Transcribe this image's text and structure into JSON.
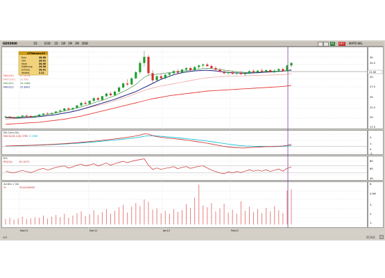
{
  "toolbar": {
    "symbol": "GDX0000",
    "period": "1D",
    "tabs": [
      "EOD",
      "1D"
    ],
    "mode_a": "1W",
    "mode_b": "1M",
    "mode_c": "3M",
    "mode_d": "DDB",
    "right_labels": [
      "AC",
      "DET",
      "MATR 80L"
    ]
  },
  "tooltip": {
    "date": "27February13",
    "rows": [
      {
        "label": "Kurs",
        "value": "28.88"
      },
      {
        "label": "Tief",
        "value": "26.41"
      },
      {
        "label": "Hoch",
        "value": "30.00"
      },
      {
        "label": "Eröffnung",
        "value": "26.36"
      },
      {
        "label": "Schluss",
        "value": "28.41"
      },
      {
        "label": "Veränd.",
        "value": "2.21"
      }
    ],
    "colors": {
      "bg": "#f2d27a",
      "border": "#b08a2a",
      "header": "#cc9a1a"
    }
  },
  "price_legend": [
    {
      "label": "MAV(10)",
      "value": "27.5714",
      "color": "#e53935"
    },
    {
      "label": "MAV(100)",
      "value": "25.692",
      "color": "#e57373"
    },
    {
      "label": "MAV(50)",
      "value": "26.4488",
      "color": "#2e7d32"
    },
    {
      "label": "MAV(22)",
      "value": "25.8491",
      "color": "#1a237e"
    }
  ],
  "price_axis": [
    "30.",
    "25.5",
    "21.00",
    "20.",
    "27.5",
    "25.",
    "22.5",
    "20.",
    "17.5"
  ],
  "price_last": "21.00",
  "macd_legend": [
    {
      "label": "MA-Conv.Div.",
      "value": "",
      "color": "#333333"
    },
    {
      "label": "MACD(26,12)",
      "value": "0.3765",
      "color": "#c62828"
    },
    {
      "label": "",
      "value": "0.2588",
      "color": "#00bcd4"
    }
  ],
  "macd_axis": [
    "2.",
    "1.",
    "0.",
    "-1."
  ],
  "rsi_legend": [
    {
      "label": "RSI",
      "value": "",
      "color": "#333333"
    },
    {
      "label": "RSI(14)",
      "value": "61.0272",
      "color": "#c62828"
    }
  ],
  "rsi_axis": [
    "80.",
    "60.",
    "40."
  ],
  "vol_legend": [
    {
      "label": "Ad.Dec c Vol",
      "value": "",
      "color": "#333333"
    },
    {
      "label": "TL",
      "value": "3244198950",
      "color": "#c62828"
    }
  ],
  "vol_axis": [
    "6.",
    "4.9M",
    "3.",
    "2.",
    "1."
  ],
  "x_axis": [
    "Nov11",
    "Dec11",
    "Jan12",
    "Feb12"
  ],
  "status": {
    "left": "col",
    "right": "SCALE"
  },
  "chart_data": [
    {
      "type": "candlestick",
      "title": "",
      "ylim": [
        16.5,
        32
      ],
      "candles": [
        [
          18.6,
          18.9,
          18.4,
          18.7
        ],
        [
          18.7,
          18.8,
          18.3,
          18.5
        ],
        [
          18.5,
          18.7,
          18.2,
          18.4
        ],
        [
          18.4,
          18.8,
          18.3,
          18.7
        ],
        [
          18.7,
          19.0,
          18.5,
          18.9
        ],
        [
          18.9,
          19.1,
          18.6,
          18.8
        ],
        [
          18.8,
          19.0,
          18.5,
          18.6
        ],
        [
          18.6,
          18.9,
          18.4,
          18.8
        ],
        [
          18.8,
          19.2,
          18.7,
          19.1
        ],
        [
          19.1,
          19.4,
          18.9,
          19.3
        ],
        [
          19.3,
          19.6,
          19.1,
          19.2
        ],
        [
          19.2,
          19.5,
          19.0,
          19.4
        ],
        [
          19.4,
          19.8,
          19.3,
          19.7
        ],
        [
          19.7,
          20.1,
          19.5,
          19.9
        ],
        [
          19.9,
          20.4,
          19.7,
          20.3
        ],
        [
          20.3,
          20.6,
          19.9,
          20.1
        ],
        [
          20.1,
          20.5,
          19.8,
          20.4
        ],
        [
          20.4,
          21.0,
          20.3,
          20.9
        ],
        [
          20.9,
          21.6,
          20.7,
          21.4
        ],
        [
          21.4,
          21.8,
          21.0,
          21.2
        ],
        [
          21.2,
          21.9,
          21.0,
          21.8
        ],
        [
          21.8,
          22.5,
          21.5,
          22.3
        ],
        [
          22.3,
          22.6,
          21.8,
          22.0
        ],
        [
          22.0,
          22.8,
          21.9,
          22.7
        ],
        [
          22.7,
          23.4,
          22.5,
          23.2
        ],
        [
          23.2,
          23.6,
          22.7,
          22.9
        ],
        [
          22.9,
          23.8,
          22.8,
          23.6
        ],
        [
          23.6,
          24.6,
          23.4,
          24.4
        ],
        [
          24.4,
          25.4,
          24.2,
          25.2
        ],
        [
          25.2,
          26.0,
          24.7,
          25.0
        ],
        [
          25.0,
          26.4,
          24.9,
          26.2
        ],
        [
          26.2,
          27.6,
          26.0,
          27.4
        ],
        [
          27.4,
          29.6,
          27.0,
          29.2
        ],
        [
          29.2,
          31.6,
          28.5,
          30.4
        ],
        [
          30.4,
          30.8,
          26.8,
          27.2
        ],
        [
          27.2,
          27.8,
          25.3,
          25.8
        ],
        [
          25.8,
          26.8,
          25.6,
          26.6
        ],
        [
          26.6,
          27.2,
          26.0,
          26.2
        ],
        [
          26.2,
          27.0,
          26.0,
          26.9
        ],
        [
          26.9,
          27.4,
          26.4,
          27.2
        ],
        [
          27.2,
          27.8,
          26.9,
          27.6
        ],
        [
          27.6,
          28.0,
          27.1,
          27.3
        ],
        [
          27.3,
          28.1,
          27.2,
          27.9
        ],
        [
          27.9,
          28.4,
          27.5,
          28.2
        ],
        [
          28.2,
          28.5,
          27.6,
          27.8
        ],
        [
          27.8,
          28.6,
          27.6,
          28.4
        ],
        [
          28.4,
          28.9,
          28.0,
          28.7
        ],
        [
          28.7,
          29.1,
          28.3,
          28.9
        ],
        [
          28.9,
          29.2,
          28.4,
          28.6
        ],
        [
          28.6,
          28.9,
          28.0,
          28.2
        ],
        [
          28.2,
          28.6,
          27.7,
          27.9
        ],
        [
          27.9,
          28.2,
          27.3,
          27.5
        ],
        [
          27.5,
          27.9,
          27.0,
          27.2
        ],
        [
          27.2,
          27.6,
          26.8,
          27.4
        ],
        [
          27.4,
          27.7,
          26.9,
          27.1
        ],
        [
          27.1,
          27.5,
          26.8,
          27.3
        ],
        [
          27.3,
          27.6,
          26.9,
          27.0
        ],
        [
          27.0,
          27.4,
          26.7,
          27.2
        ],
        [
          27.2,
          27.8,
          27.0,
          27.6
        ],
        [
          27.6,
          28.0,
          27.2,
          27.4
        ],
        [
          27.4,
          27.8,
          27.1,
          27.7
        ],
        [
          27.7,
          28.1,
          27.3,
          27.5
        ],
        [
          27.5,
          27.9,
          27.2,
          27.8
        ],
        [
          27.8,
          28.0,
          27.3,
          27.4
        ],
        [
          27.4,
          27.9,
          27.2,
          27.7
        ],
        [
          27.7,
          28.2,
          27.5,
          28.0
        ],
        [
          28.0,
          28.3,
          27.5,
          27.6
        ],
        [
          27.6,
          28.9,
          27.5,
          28.7
        ],
        [
          28.7,
          29.4,
          28.3,
          29.2
        ]
      ],
      "ma_red": [
        17.2,
        17.25,
        17.3,
        17.35,
        17.4,
        17.45,
        17.5,
        17.55,
        17.6,
        17.7,
        17.8,
        17.9,
        18.0,
        18.1,
        18.2,
        18.35,
        18.5,
        18.65,
        18.8,
        19.0,
        19.2,
        19.4,
        19.6,
        19.8,
        20.0,
        20.2,
        20.4,
        20.6,
        20.8,
        21.0,
        21.2,
        21.4,
        21.6,
        21.8,
        22.0,
        22.2,
        22.35,
        22.5,
        22.65,
        22.8,
        22.9,
        23.0,
        23.1,
        23.2,
        23.3,
        23.4,
        23.5,
        23.6,
        23.7,
        23.75,
        23.8,
        23.85,
        23.9,
        23.95,
        24.0,
        24.05,
        24.1,
        24.15,
        24.2,
        24.25,
        24.3,
        24.35,
        24.4,
        24.45,
        24.5,
        24.55,
        24.6,
        24.7,
        24.8
      ],
      "ma_pink": [
        18.2,
        18.25,
        18.3,
        18.35,
        18.4,
        18.45,
        18.5,
        18.6,
        18.7,
        18.8,
        18.9,
        19.0,
        19.1,
        19.25,
        19.4,
        19.55,
        19.7,
        19.9,
        20.1,
        20.3,
        20.5,
        20.7,
        20.9,
        21.1,
        21.3,
        21.55,
        21.8,
        22.05,
        22.3,
        22.6,
        22.9,
        23.2,
        23.5,
        23.8,
        24.1,
        24.3,
        24.5,
        24.7,
        24.85,
        25.0,
        25.15,
        25.3,
        25.45,
        25.6,
        25.75,
        25.9,
        26.05,
        26.2,
        26.3,
        26.4,
        26.45,
        26.5,
        26.55,
        26.6,
        26.6,
        26.65,
        26.65,
        26.7,
        26.7,
        26.75,
        26.75,
        26.8,
        26.8,
        26.85,
        26.85,
        26.9,
        26.9,
        27.0,
        27.1
      ],
      "ma_navy": [
        18.5,
        18.5,
        18.45,
        18.45,
        18.5,
        18.55,
        18.6,
        18.65,
        18.7,
        18.8,
        18.9,
        19.0,
        19.1,
        19.25,
        19.4,
        19.55,
        19.7,
        19.9,
        20.1,
        20.35,
        20.6,
        20.85,
        21.1,
        21.35,
        21.6,
        21.85,
        22.1,
        22.4,
        22.7,
        23.0,
        23.3,
        23.6,
        24.0,
        24.4,
        24.8,
        25.2,
        25.6,
        26.0,
        26.3,
        26.6,
        26.9,
        27.1,
        27.3,
        27.45,
        27.55,
        27.65,
        27.7,
        27.75,
        27.75,
        27.7,
        27.65,
        27.55,
        27.45,
        27.35,
        27.3,
        27.25,
        27.2,
        27.2,
        27.2,
        27.25,
        27.3,
        27.35,
        27.4,
        27.45,
        27.5,
        27.55,
        27.6,
        27.7,
        27.8
      ],
      "ma_green": [
        18.6,
        18.6,
        18.55,
        18.6,
        18.7,
        18.75,
        18.75,
        18.8,
        18.9,
        19.0,
        19.15,
        19.3,
        19.45,
        19.6,
        19.8,
        20.0,
        20.2,
        20.4,
        20.6,
        20.85,
        21.1,
        21.4,
        21.65,
        21.9,
        22.2,
        22.5,
        22.8,
        23.2,
        23.6,
        24.0,
        24.5,
        25.0,
        25.7,
        26.4,
        26.8,
        26.9,
        27.0,
        27.1,
        27.2,
        27.3,
        27.4,
        27.5,
        27.6,
        27.7,
        27.8,
        27.9,
        28.0,
        28.1,
        28.15,
        28.1,
        28.0,
        27.9,
        27.8,
        27.7,
        27.6,
        27.5,
        27.4,
        27.35,
        27.35,
        27.4,
        27.45,
        27.5,
        27.55,
        27.55,
        27.55,
        27.6,
        27.6,
        27.7,
        27.9
      ]
    },
    {
      "type": "line",
      "title": "MA-Conv.Div.",
      "ylim": [
        -1.3,
        2.4
      ],
      "series": [
        {
          "name": "MACD(26,12)",
          "values": [
            0.05,
            0.06,
            0.08,
            0.1,
            0.12,
            0.14,
            0.16,
            0.18,
            0.21,
            0.24,
            0.27,
            0.3,
            0.34,
            0.38,
            0.42,
            0.47,
            0.52,
            0.57,
            0.63,
            0.69,
            0.75,
            0.82,
            0.88,
            0.95,
            1.02,
            1.1,
            1.18,
            1.26,
            1.35,
            1.45,
            1.55,
            1.66,
            1.8,
            2.0,
            1.95,
            1.7,
            1.55,
            1.45,
            1.35,
            1.28,
            1.22,
            1.15,
            1.08,
            1.0,
            0.9,
            0.8,
            0.7,
            0.6,
            0.48,
            0.36,
            0.22,
            0.1,
            -0.02,
            -0.12,
            -0.2,
            -0.25,
            -0.28,
            -0.27,
            -0.22,
            -0.18,
            -0.14,
            -0.1,
            -0.07,
            -0.05,
            -0.03,
            0.0,
            0.05,
            0.15,
            0.3
          ]
        },
        {
          "name": "",
          "values": [
            0.04,
            0.05,
            0.06,
            0.07,
            0.09,
            0.11,
            0.13,
            0.15,
            0.17,
            0.2,
            0.23,
            0.26,
            0.29,
            0.32,
            0.36,
            0.4,
            0.44,
            0.48,
            0.53,
            0.58,
            0.63,
            0.69,
            0.75,
            0.81,
            0.87,
            0.94,
            1.0,
            1.07,
            1.14,
            1.22,
            1.3,
            1.38,
            1.48,
            1.6,
            1.68,
            1.68,
            1.65,
            1.6,
            1.54,
            1.48,
            1.42,
            1.36,
            1.3,
            1.23,
            1.16,
            1.08,
            1.0,
            0.92,
            0.83,
            0.74,
            0.64,
            0.54,
            0.44,
            0.34,
            0.25,
            0.17,
            0.1,
            0.05,
            0.02,
            0.0,
            -0.02,
            -0.03,
            -0.04,
            -0.04,
            -0.04,
            -0.03,
            -0.01,
            0.03,
            0.1
          ]
        }
      ]
    },
    {
      "type": "line",
      "title": "RSI",
      "ylim": [
        30,
        95
      ],
      "series": [
        {
          "name": "RSI(14)",
          "values": [
            55,
            52,
            50,
            54,
            57,
            54,
            51,
            55,
            60,
            63,
            58,
            62,
            66,
            68,
            70,
            64,
            67,
            72,
            75,
            70,
            73,
            76,
            70,
            74,
            78,
            72,
            76,
            80,
            83,
            79,
            83,
            86,
            88,
            90,
            72,
            60,
            64,
            60,
            63,
            65,
            68,
            62,
            66,
            68,
            63,
            66,
            69,
            70,
            64,
            58,
            54,
            50,
            48,
            53,
            50,
            54,
            51,
            55,
            59,
            55,
            58,
            55,
            59,
            54,
            58,
            61,
            55,
            63,
            67
          ]
        }
      ]
    },
    {
      "type": "bar",
      "title": "Ad.Dec c Vol",
      "ylim": [
        0,
        7
      ],
      "values": [
        0.9,
        1.1,
        0.8,
        1.0,
        1.3,
        0.9,
        1.0,
        1.2,
        1.1,
        1.5,
        1.0,
        1.3,
        1.6,
        1.2,
        1.8,
        1.1,
        1.5,
        1.9,
        2.2,
        1.4,
        1.7,
        2.4,
        1.6,
        2.1,
        2.6,
        1.8,
        2.3,
        2.9,
        3.3,
        2.0,
        3.0,
        3.6,
        3.1,
        4.2,
        3.8,
        2.5,
        2.7,
        1.9,
        2.3,
        1.8,
        2.6,
        2.1,
        2.4,
        3.4,
        2.8,
        4.5,
        6.7,
        3.2,
        2.9,
        3.6,
        2.2,
        2.7,
        3.5,
        2.0,
        2.5,
        1.8,
        3.9,
        2.3,
        3.0,
        2.1,
        2.6,
        1.9,
        2.8,
        2.2,
        3.1,
        2.4,
        1.9,
        5.7,
        5.9
      ]
    }
  ]
}
